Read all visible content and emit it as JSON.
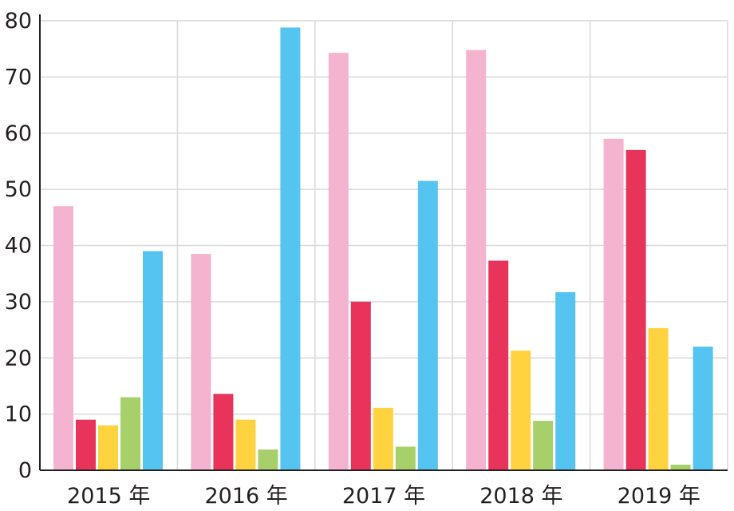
{
  "chart_data": {
    "type": "bar",
    "categories": [
      "2015 年",
      "2016 年",
      "2017 年",
      "2018 年",
      "2019 年"
    ],
    "series": [
      {
        "values": [
          47,
          38.5,
          74.3,
          74.8,
          59
        ],
        "color": "#f4b4d0"
      },
      {
        "values": [
          9,
          13.6,
          30,
          37.3,
          57
        ],
        "color": "#e8345a"
      },
      {
        "values": [
          8,
          9,
          11.1,
          21.3,
          25.3
        ],
        "color": "#ffd340"
      },
      {
        "values": [
          13,
          3.7,
          4.2,
          8.8,
          1
        ],
        "color": "#a8d06a"
      },
      {
        "values": [
          39,
          78.8,
          51.5,
          31.7,
          22
        ],
        "color": "#55c4f0"
      }
    ],
    "yticks": [
      0,
      10,
      20,
      30,
      40,
      50,
      60,
      70,
      80
    ],
    "ylim": [
      0,
      80
    ],
    "grid": true,
    "colors": {
      "grid": "#d9d9d9",
      "axis": "#231f20",
      "text": "#231f20"
    }
  }
}
